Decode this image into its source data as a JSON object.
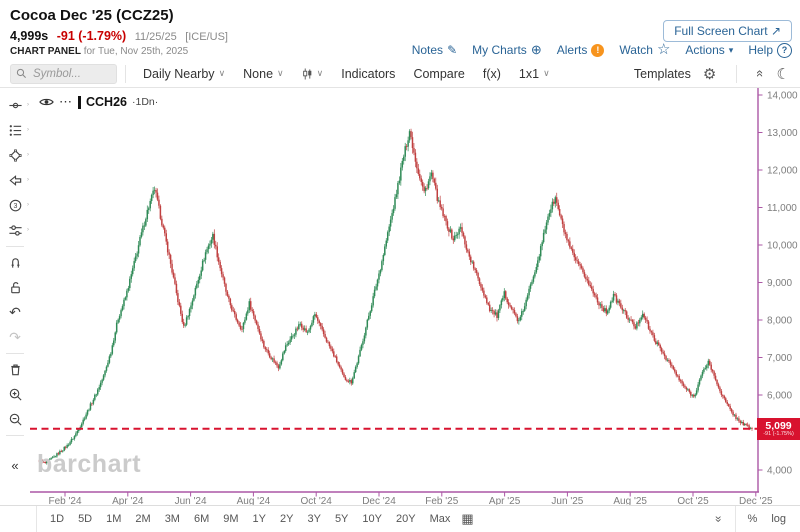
{
  "header": {
    "title": "Cocoa Dec '25 (CCZ25)",
    "price": "4,999s",
    "change": "-91 (-1.79%)",
    "quote_date": "11/25/25",
    "exchange": "[ICE/US]",
    "panel_label": "CHART PANEL",
    "panel_date": "for Tue, Nov 25th, 2025",
    "full_screen_label": "Full Screen Chart",
    "links": [
      {
        "label": "Notes",
        "icon": "pencil-icon"
      },
      {
        "label": "My Charts",
        "icon": "plus-circle-icon"
      },
      {
        "label": "Alerts",
        "icon": "alert-badge-icon"
      },
      {
        "label": "Watch",
        "icon": "star-icon"
      },
      {
        "label": "Actions",
        "icon": "caret-down-icon"
      },
      {
        "label": "Help",
        "icon": "help-circle-icon"
      }
    ]
  },
  "toolbar": {
    "symbol_placeholder": "Symbol...",
    "frequency_label": "Daily Nearby",
    "tools_label": "None",
    "indicators_label": "Indicators",
    "compare_label": "Compare",
    "fx_label": "f(x)",
    "grid_label": "1x1",
    "templates_label": "Templates"
  },
  "icons": {
    "arrow_ne": "↗",
    "pencil": "✎",
    "plus_circle": "⊕",
    "star": "☆",
    "caret_solid": "▾",
    "caret": "∨",
    "gear": "⚙",
    "moon": "☾",
    "menu_dots": "⋯",
    "undo": "↶",
    "redo": "↷",
    "collapse": "«",
    "calendar": "▦",
    "alert_mark": "!",
    "help_mark": "?"
  },
  "sidebar": {
    "tools": [
      "crosshair",
      "annotations",
      "shapes",
      "arrow",
      "counter-3",
      "adjust",
      "magnet",
      "unlock",
      "undo",
      "redo",
      "trash",
      "zoom-in",
      "zoom-out",
      "collapse"
    ]
  },
  "chart": {
    "legend_symbol": "CCH26",
    "legend_freq": "·1Dn·",
    "watermark": "barchart",
    "last_price_label": "5,099",
    "last_price_sub": "-91 (-1.75%)"
  },
  "chart_data": {
    "type": "candlestick",
    "symbol": "CCH26",
    "frequency": "daily",
    "x_labels": [
      "Feb '24",
      "Apr '24",
      "Jun '24",
      "Aug '24",
      "Oct '24",
      "Dec '24",
      "Feb '25",
      "Apr '25",
      "Jun '25",
      "Aug '25",
      "Oct '25",
      "Dec '25"
    ],
    "y_ticks": [
      4000,
      5000,
      6000,
      7000,
      8000,
      9000,
      10000,
      11000,
      12000,
      13000,
      14000
    ],
    "ylim": [
      3400,
      14200
    ],
    "last_price": 5099,
    "weekly_closes": [
      4250,
      4180,
      4320,
      4480,
      4650,
      4900,
      5250,
      5650,
      6050,
      6500,
      7150,
      8050,
      8600,
      9350,
      10150,
      10900,
      11500,
      10600,
      9700,
      8700,
      7800,
      8400,
      9100,
      9800,
      10250,
      9400,
      8600,
      8100,
      7750,
      8450,
      7900,
      7300,
      7000,
      6750,
      7300,
      7600,
      7900,
      7650,
      8150,
      7700,
      7300,
      6900,
      6450,
      6350,
      7000,
      7800,
      8600,
      9400,
      10300,
      11200,
      12200,
      13050,
      12100,
      11400,
      11900,
      11100,
      10600,
      10150,
      10450,
      9800,
      9300,
      8800,
      8300,
      8100,
      8700,
      8300,
      7950,
      8500,
      9200,
      9900,
      10800,
      11250,
      10500,
      9900,
      9500,
      9200,
      8800,
      8450,
      8200,
      8650,
      8350,
      8050,
      7800,
      8200,
      7700,
      7350,
      7050,
      6750,
      6400,
      6150,
      5950,
      6500,
      6900,
      6400,
      5950,
      5600,
      5350,
      5200,
      5099
    ],
    "colors": {
      "up": "#2f8a56",
      "down": "#c04040",
      "frame": "#ab57a5",
      "price_line": "#d8122f",
      "tick_text": "#7d7d7d"
    }
  },
  "bottom_bar": {
    "ranges": [
      "1D",
      "5D",
      "1M",
      "2M",
      "3M",
      "6M",
      "9M",
      "1Y",
      "2Y",
      "3Y",
      "5Y",
      "10Y",
      "20Y",
      "Max"
    ],
    "percent_label": "%",
    "log_label": "log"
  }
}
